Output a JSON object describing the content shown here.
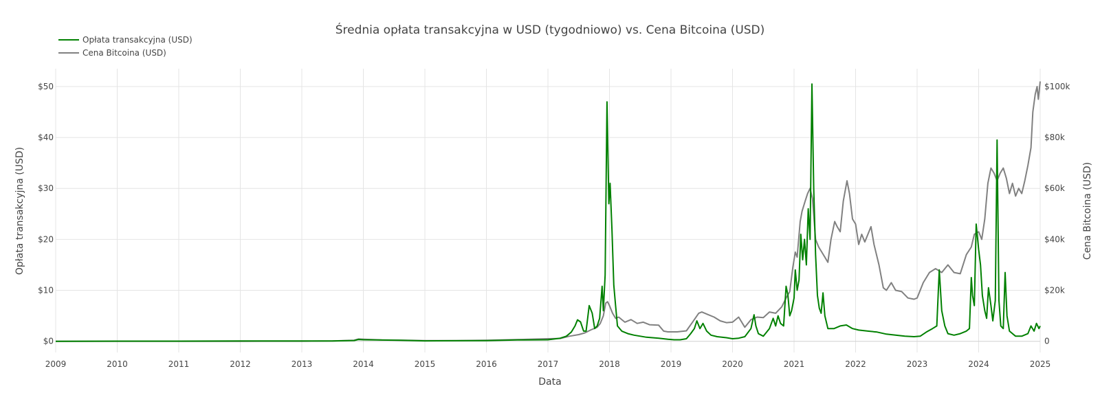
{
  "chart_data": {
    "type": "line",
    "title": "Średnia opłata transakcyjna w USD (tygodniowo) vs. Cena Bitcoina (USD)",
    "xlabel": "Data",
    "ylabel": "Opłata transakcyjna (USD)",
    "y2label": "Cena Bitcoina (USD)",
    "xlim": [
      2009.0,
      2025.0
    ],
    "ylim": [
      -2.2,
      53.5
    ],
    "y2lim": [
      -4400,
      107000
    ],
    "x_ticks": [
      "2009",
      "2010",
      "2011",
      "2012",
      "2013",
      "2014",
      "2015",
      "2016",
      "2017",
      "2018",
      "2019",
      "2020",
      "2021",
      "2022",
      "2023",
      "2024",
      "2025"
    ],
    "y_ticks": [
      {
        "v": 0,
        "label": "$0"
      },
      {
        "v": 10,
        "label": "$10"
      },
      {
        "v": 20,
        "label": "$20"
      },
      {
        "v": 30,
        "label": "$30"
      },
      {
        "v": 40,
        "label": "$40"
      },
      {
        "v": 50,
        "label": "$50"
      }
    ],
    "y2_ticks": [
      {
        "v": 0,
        "label": "0"
      },
      {
        "v": 20000,
        "label": "$20k"
      },
      {
        "v": 40000,
        "label": "$40k"
      },
      {
        "v": 60000,
        "label": "$60k"
      },
      {
        "v": 80000,
        "label": "$80k"
      },
      {
        "v": 100000,
        "label": "$100k"
      }
    ],
    "grid": true,
    "legend_position": "top-left",
    "series": [
      {
        "name": "Opłata transakcyjna (USD)",
        "axis": "y",
        "color": "#008000",
        "points": [
          [
            2009.0,
            0.0
          ],
          [
            2010.0,
            0.02
          ],
          [
            2011.0,
            0.03
          ],
          [
            2012.0,
            0.05
          ],
          [
            2013.0,
            0.05
          ],
          [
            2013.5,
            0.05
          ],
          [
            2013.85,
            0.15
          ],
          [
            2013.92,
            0.35
          ],
          [
            2014.0,
            0.3
          ],
          [
            2014.2,
            0.25
          ],
          [
            2014.6,
            0.2
          ],
          [
            2015.0,
            0.08
          ],
          [
            2015.5,
            0.1
          ],
          [
            2016.0,
            0.12
          ],
          [
            2016.5,
            0.25
          ],
          [
            2017.0,
            0.3
          ],
          [
            2017.2,
            0.6
          ],
          [
            2017.3,
            1.0
          ],
          [
            2017.38,
            1.8
          ],
          [
            2017.44,
            3.0
          ],
          [
            2017.48,
            4.2
          ],
          [
            2017.53,
            3.8
          ],
          [
            2017.58,
            2.0
          ],
          [
            2017.62,
            2.0
          ],
          [
            2017.67,
            7.0
          ],
          [
            2017.72,
            5.5
          ],
          [
            2017.76,
            2.5
          ],
          [
            2017.8,
            3.0
          ],
          [
            2017.84,
            4.5
          ],
          [
            2017.88,
            10.8
          ],
          [
            2017.9,
            6.0
          ],
          [
            2017.93,
            13.0
          ],
          [
            2017.96,
            47.0
          ],
          [
            2017.99,
            27.0
          ],
          [
            2018.01,
            31.0
          ],
          [
            2018.04,
            22.0
          ],
          [
            2018.07,
            11.0
          ],
          [
            2018.1,
            7.0
          ],
          [
            2018.13,
            3.0
          ],
          [
            2018.2,
            2.0
          ],
          [
            2018.3,
            1.5
          ],
          [
            2018.4,
            1.2
          ],
          [
            2018.5,
            1.0
          ],
          [
            2018.6,
            0.8
          ],
          [
            2018.8,
            0.6
          ],
          [
            2018.95,
            0.4
          ],
          [
            2019.05,
            0.3
          ],
          [
            2019.15,
            0.3
          ],
          [
            2019.25,
            0.5
          ],
          [
            2019.32,
            1.5
          ],
          [
            2019.38,
            2.5
          ],
          [
            2019.42,
            4.0
          ],
          [
            2019.47,
            2.5
          ],
          [
            2019.52,
            3.5
          ],
          [
            2019.58,
            2.0
          ],
          [
            2019.65,
            1.2
          ],
          [
            2019.75,
            0.9
          ],
          [
            2019.9,
            0.7
          ],
          [
            2020.0,
            0.5
          ],
          [
            2020.1,
            0.6
          ],
          [
            2020.2,
            0.9
          ],
          [
            2020.3,
            2.5
          ],
          [
            2020.35,
            5.2
          ],
          [
            2020.38,
            3.0
          ],
          [
            2020.42,
            1.5
          ],
          [
            2020.5,
            1.0
          ],
          [
            2020.6,
            2.5
          ],
          [
            2020.66,
            4.5
          ],
          [
            2020.7,
            3.0
          ],
          [
            2020.74,
            5.0
          ],
          [
            2020.78,
            3.5
          ],
          [
            2020.83,
            3.0
          ],
          [
            2020.87,
            10.8
          ],
          [
            2020.9,
            9.0
          ],
          [
            2020.93,
            5.0
          ],
          [
            2020.96,
            6.0
          ],
          [
            2021.0,
            8.5
          ],
          [
            2021.02,
            14.0
          ],
          [
            2021.05,
            10.0
          ],
          [
            2021.08,
            12.0
          ],
          [
            2021.11,
            21.0
          ],
          [
            2021.14,
            16.0
          ],
          [
            2021.17,
            20.0
          ],
          [
            2021.2,
            15.0
          ],
          [
            2021.23,
            26.0
          ],
          [
            2021.26,
            20.0
          ],
          [
            2021.29,
            50.5
          ],
          [
            2021.32,
            30.0
          ],
          [
            2021.35,
            17.0
          ],
          [
            2021.38,
            9.0
          ],
          [
            2021.41,
            6.5
          ],
          [
            2021.44,
            5.5
          ],
          [
            2021.47,
            9.5
          ],
          [
            2021.5,
            5.0
          ],
          [
            2021.55,
            2.5
          ],
          [
            2021.65,
            2.5
          ],
          [
            2021.75,
            3.0
          ],
          [
            2021.85,
            3.2
          ],
          [
            2021.95,
            2.5
          ],
          [
            2022.05,
            2.2
          ],
          [
            2022.2,
            2.0
          ],
          [
            2022.35,
            1.8
          ],
          [
            2022.5,
            1.4
          ],
          [
            2022.65,
            1.2
          ],
          [
            2022.8,
            1.0
          ],
          [
            2022.95,
            0.9
          ],
          [
            2023.05,
            1.0
          ],
          [
            2023.15,
            1.8
          ],
          [
            2023.25,
            2.5
          ],
          [
            2023.32,
            3.0
          ],
          [
            2023.36,
            14.0
          ],
          [
            2023.4,
            6.0
          ],
          [
            2023.45,
            3.0
          ],
          [
            2023.5,
            1.5
          ],
          [
            2023.6,
            1.2
          ],
          [
            2023.7,
            1.5
          ],
          [
            2023.8,
            2.0
          ],
          [
            2023.85,
            2.5
          ],
          [
            2023.88,
            12.5
          ],
          [
            2023.9,
            9.0
          ],
          [
            2023.93,
            7.0
          ],
          [
            2023.96,
            23.0
          ],
          [
            2024.0,
            18.0
          ],
          [
            2024.03,
            15.0
          ],
          [
            2024.06,
            9.0
          ],
          [
            2024.1,
            6.0
          ],
          [
            2024.13,
            4.5
          ],
          [
            2024.16,
            10.5
          ],
          [
            2024.2,
            7.0
          ],
          [
            2024.23,
            4.0
          ],
          [
            2024.27,
            8.0
          ],
          [
            2024.3,
            39.5
          ],
          [
            2024.33,
            8.0
          ],
          [
            2024.36,
            3.0
          ],
          [
            2024.4,
            2.5
          ],
          [
            2024.43,
            13.5
          ],
          [
            2024.46,
            5.0
          ],
          [
            2024.5,
            2.0
          ],
          [
            2024.6,
            1.0
          ],
          [
            2024.7,
            1.0
          ],
          [
            2024.8,
            1.5
          ],
          [
            2024.85,
            3.0
          ],
          [
            2024.9,
            2.0
          ],
          [
            2024.94,
            3.5
          ],
          [
            2024.98,
            2.5
          ],
          [
            2025.0,
            3.0
          ]
        ]
      },
      {
        "name": "Cena Bitcoina (USD)",
        "axis": "y2",
        "color": "#808080",
        "points": [
          [
            2009.0,
            0
          ],
          [
            2010.0,
            0
          ],
          [
            2011.0,
            10
          ],
          [
            2012.0,
            10
          ],
          [
            2013.0,
            20
          ],
          [
            2013.5,
            100
          ],
          [
            2013.85,
            400
          ],
          [
            2013.92,
            900
          ],
          [
            2014.0,
            800
          ],
          [
            2014.3,
            500
          ],
          [
            2014.8,
            350
          ],
          [
            2015.0,
            250
          ],
          [
            2015.5,
            250
          ],
          [
            2016.0,
            400
          ],
          [
            2016.5,
            650
          ],
          [
            2017.0,
            1000
          ],
          [
            2017.2,
            1100
          ],
          [
            2017.35,
            2000
          ],
          [
            2017.5,
            2600
          ],
          [
            2017.6,
            3300
          ],
          [
            2017.7,
            4500
          ],
          [
            2017.8,
            5500
          ],
          [
            2017.85,
            7000
          ],
          [
            2017.9,
            10000
          ],
          [
            2017.94,
            15000
          ],
          [
            2017.97,
            15500
          ],
          [
            2018.0,
            14000
          ],
          [
            2018.05,
            11000
          ],
          [
            2018.1,
            9000
          ],
          [
            2018.15,
            9500
          ],
          [
            2018.25,
            7500
          ],
          [
            2018.35,
            8500
          ],
          [
            2018.45,
            7000
          ],
          [
            2018.55,
            7500
          ],
          [
            2018.65,
            6500
          ],
          [
            2018.8,
            6300
          ],
          [
            2018.88,
            4000
          ],
          [
            2018.95,
            3700
          ],
          [
            2019.1,
            3700
          ],
          [
            2019.25,
            4100
          ],
          [
            2019.35,
            7500
          ],
          [
            2019.45,
            11000
          ],
          [
            2019.5,
            11500
          ],
          [
            2019.6,
            10500
          ],
          [
            2019.7,
            9500
          ],
          [
            2019.8,
            8000
          ],
          [
            2019.9,
            7300
          ],
          [
            2020.0,
            7500
          ],
          [
            2020.1,
            9500
          ],
          [
            2020.2,
            5500
          ],
          [
            2020.3,
            8500
          ],
          [
            2020.4,
            9500
          ],
          [
            2020.5,
            9300
          ],
          [
            2020.6,
            11500
          ],
          [
            2020.7,
            11000
          ],
          [
            2020.8,
            13500
          ],
          [
            2020.87,
            17000
          ],
          [
            2020.93,
            19500
          ],
          [
            2020.98,
            29000
          ],
          [
            2021.02,
            35000
          ],
          [
            2021.05,
            33000
          ],
          [
            2021.1,
            47000
          ],
          [
            2021.13,
            51000
          ],
          [
            2021.18,
            55000
          ],
          [
            2021.22,
            58000
          ],
          [
            2021.26,
            60000
          ],
          [
            2021.3,
            56000
          ],
          [
            2021.35,
            40000
          ],
          [
            2021.4,
            37000
          ],
          [
            2021.45,
            35000
          ],
          [
            2021.5,
            33000
          ],
          [
            2021.55,
            31000
          ],
          [
            2021.6,
            40000
          ],
          [
            2021.66,
            47000
          ],
          [
            2021.7,
            45000
          ],
          [
            2021.75,
            43000
          ],
          [
            2021.8,
            55000
          ],
          [
            2021.86,
            63000
          ],
          [
            2021.9,
            58000
          ],
          [
            2021.95,
            48000
          ],
          [
            2022.0,
            46000
          ],
          [
            2022.05,
            38000
          ],
          [
            2022.1,
            42000
          ],
          [
            2022.15,
            39000
          ],
          [
            2022.25,
            45000
          ],
          [
            2022.3,
            38000
          ],
          [
            2022.38,
            30000
          ],
          [
            2022.45,
            21000
          ],
          [
            2022.5,
            20000
          ],
          [
            2022.58,
            23000
          ],
          [
            2022.65,
            20000
          ],
          [
            2022.75,
            19500
          ],
          [
            2022.85,
            17000
          ],
          [
            2022.95,
            16500
          ],
          [
            2023.0,
            17000
          ],
          [
            2023.1,
            23000
          ],
          [
            2023.2,
            27000
          ],
          [
            2023.3,
            28500
          ],
          [
            2023.4,
            27000
          ],
          [
            2023.5,
            30000
          ],
          [
            2023.6,
            27000
          ],
          [
            2023.7,
            26500
          ],
          [
            2023.8,
            34000
          ],
          [
            2023.88,
            37000
          ],
          [
            2023.93,
            42000
          ],
          [
            2024.0,
            43000
          ],
          [
            2024.05,
            40000
          ],
          [
            2024.1,
            48000
          ],
          [
            2024.15,
            62000
          ],
          [
            2024.2,
            68000
          ],
          [
            2024.25,
            66000
          ],
          [
            2024.3,
            63000
          ],
          [
            2024.35,
            66000
          ],
          [
            2024.4,
            68000
          ],
          [
            2024.45,
            64000
          ],
          [
            2024.5,
            58000
          ],
          [
            2024.55,
            62000
          ],
          [
            2024.6,
            57000
          ],
          [
            2024.65,
            60000
          ],
          [
            2024.7,
            58000
          ],
          [
            2024.75,
            63000
          ],
          [
            2024.8,
            69000
          ],
          [
            2024.85,
            76000
          ],
          [
            2024.88,
            90000
          ],
          [
            2024.92,
            97000
          ],
          [
            2024.95,
            100000
          ],
          [
            2024.97,
            95000
          ],
          [
            2025.0,
            102000
          ]
        ]
      }
    ]
  }
}
